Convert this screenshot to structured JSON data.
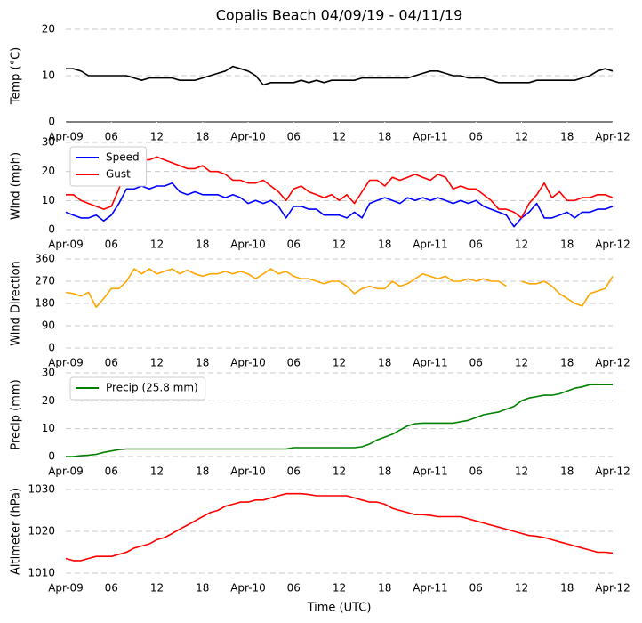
{
  "chart_data": [
    {
      "type": "line",
      "title": "Copalis Beach 04/09/19 - 04/11/19",
      "ylabel": "Temp (°C)",
      "x": [
        0,
        1,
        2,
        3,
        4,
        5,
        6,
        7,
        8,
        9,
        10,
        11,
        12,
        13,
        14,
        15,
        16,
        17,
        18,
        19,
        20,
        21,
        22,
        23,
        24,
        25,
        26,
        27,
        28,
        29,
        30,
        31,
        32,
        33,
        34,
        35,
        36,
        37,
        38,
        39,
        40,
        41,
        42,
        43,
        44,
        45,
        46,
        47,
        48,
        49,
        50,
        51,
        52,
        53,
        54,
        55,
        56,
        57,
        58,
        59,
        60,
        61,
        62,
        63,
        64,
        65,
        66,
        67,
        68,
        69,
        70,
        71,
        72
      ],
      "series": [
        {
          "color": "#000000",
          "values": [
            11.5,
            11.5,
            11,
            10,
            10,
            10,
            10,
            10,
            10,
            9.5,
            9,
            9.5,
            9.5,
            9.5,
            9.5,
            9,
            9,
            9,
            9.5,
            10,
            10.5,
            11,
            12,
            11.5,
            11,
            10,
            8,
            8.5,
            8.5,
            8.5,
            8.5,
            9,
            8.5,
            9,
            8.5,
            9,
            9,
            9,
            9,
            9.5,
            9.5,
            9.5,
            9.5,
            9.5,
            9.5,
            9.5,
            10,
            10.5,
            11,
            11,
            10.5,
            10,
            10,
            9.5,
            9.5,
            9.5,
            9,
            8.5,
            8.5,
            8.5,
            8.5,
            8.5,
            9,
            9,
            9,
            9,
            9,
            9,
            9.5,
            10,
            11,
            11.5,
            11
          ]
        }
      ],
      "xlim": [
        0,
        72
      ],
      "ylim": [
        0,
        20
      ],
      "yticks": [
        0,
        10,
        20
      ],
      "xticks": [
        {
          "value": 0,
          "label": "Apr-09"
        },
        {
          "value": 6,
          "label": "06"
        },
        {
          "value": 12,
          "label": "12"
        },
        {
          "value": 18,
          "label": "18"
        },
        {
          "value": 24,
          "label": "Apr-10"
        },
        {
          "value": 30,
          "label": "06"
        },
        {
          "value": 36,
          "label": "12"
        },
        {
          "value": 42,
          "label": "18"
        },
        {
          "value": 48,
          "label": "Apr-11"
        },
        {
          "value": 54,
          "label": "06"
        },
        {
          "value": 60,
          "label": "12"
        },
        {
          "value": 66,
          "label": "18"
        },
        {
          "value": 72,
          "label": "Apr-12"
        }
      ],
      "grid": true
    },
    {
      "type": "line",
      "ylabel": "Wind (mph)",
      "x": [
        0,
        1,
        2,
        3,
        4,
        5,
        6,
        7,
        8,
        9,
        10,
        11,
        12,
        13,
        14,
        15,
        16,
        17,
        18,
        19,
        20,
        21,
        22,
        23,
        24,
        25,
        26,
        27,
        28,
        29,
        30,
        31,
        32,
        33,
        34,
        35,
        36,
        37,
        38,
        39,
        40,
        41,
        42,
        43,
        44,
        45,
        46,
        47,
        48,
        49,
        50,
        51,
        52,
        53,
        54,
        55,
        56,
        57,
        58,
        59,
        60,
        61,
        62,
        63,
        64,
        65,
        66,
        67,
        68,
        69,
        70,
        71,
        72
      ],
      "series": [
        {
          "name": "Speed",
          "color": "#0000ff",
          "values": [
            6,
            5,
            4,
            4,
            5,
            3,
            5,
            9,
            14,
            14,
            15,
            14,
            15,
            15,
            16,
            13,
            12,
            13,
            12,
            12,
            12,
            11,
            12,
            11,
            9,
            10,
            9,
            10,
            8,
            4,
            8,
            8,
            7,
            7,
            5,
            5,
            5,
            4,
            6,
            4,
            9,
            10,
            11,
            10,
            9,
            11,
            10,
            11,
            10,
            11,
            10,
            9,
            10,
            9,
            10,
            8,
            7,
            6,
            5,
            1,
            4,
            6,
            9,
            4,
            4,
            5,
            6,
            4,
            6,
            6,
            7,
            7,
            8
          ]
        },
        {
          "name": "Gust",
          "color": "#ff0000",
          "values": [
            12,
            12,
            10,
            9,
            8,
            7,
            8,
            14,
            22,
            23,
            24,
            24,
            25,
            24,
            23,
            22,
            21,
            21,
            22,
            20,
            20,
            19,
            17,
            17,
            16,
            16,
            17,
            15,
            13,
            10,
            14,
            15,
            13,
            12,
            11,
            12,
            10,
            12,
            9,
            13,
            17,
            17,
            15,
            18,
            17,
            18,
            19,
            18,
            17,
            19,
            18,
            14,
            15,
            14,
            14,
            12,
            10,
            7,
            7,
            6,
            4,
            9,
            12,
            16,
            11,
            13,
            10,
            10,
            11,
            11,
            12,
            12,
            11
          ]
        }
      ],
      "xlim": [
        0,
        72
      ],
      "ylim": [
        0,
        30
      ],
      "yticks": [
        0,
        10,
        20,
        30
      ],
      "xticks": [
        {
          "value": 0,
          "label": "Apr-09"
        },
        {
          "value": 6,
          "label": "06"
        },
        {
          "value": 12,
          "label": "12"
        },
        {
          "value": 18,
          "label": "18"
        },
        {
          "value": 24,
          "label": "Apr-10"
        },
        {
          "value": 30,
          "label": "06"
        },
        {
          "value": 36,
          "label": "12"
        },
        {
          "value": 42,
          "label": "18"
        },
        {
          "value": 48,
          "label": "Apr-11"
        },
        {
          "value": 54,
          "label": "06"
        },
        {
          "value": 60,
          "label": "12"
        },
        {
          "value": 66,
          "label": "18"
        },
        {
          "value": 72,
          "label": "Apr-12"
        }
      ],
      "grid": true,
      "legend": "upper left"
    },
    {
      "type": "line",
      "ylabel": "Wind Direction",
      "x": [
        0,
        1,
        2,
        3,
        4,
        5,
        6,
        7,
        8,
        9,
        10,
        11,
        12,
        13,
        14,
        15,
        16,
        17,
        18,
        19,
        20,
        21,
        22,
        23,
        24,
        25,
        26,
        27,
        28,
        29,
        30,
        31,
        32,
        33,
        34,
        35,
        36,
        37,
        38,
        39,
        40,
        41,
        42,
        43,
        44,
        45,
        46,
        47,
        48,
        49,
        50,
        51,
        52,
        53,
        54,
        55,
        56,
        57,
        58,
        59,
        60,
        61,
        62,
        63,
        64,
        65,
        66,
        67,
        68,
        69,
        70,
        71,
        72
      ],
      "series": [
        {
          "color": "#ffa500",
          "values": [
            225,
            220,
            210,
            225,
            165,
            200,
            240,
            240,
            270,
            320,
            300,
            320,
            300,
            310,
            320,
            300,
            315,
            300,
            290,
            300,
            300,
            310,
            300,
            310,
            300,
            280,
            300,
            320,
            300,
            310,
            290,
            280,
            280,
            270,
            260,
            270,
            270,
            250,
            220,
            240,
            250,
            240,
            240,
            270,
            250,
            260,
            280,
            300,
            290,
            280,
            290,
            270,
            270,
            280,
            270,
            280,
            270,
            270,
            250,
            null,
            270,
            260,
            260,
            270,
            250,
            220,
            200,
            180,
            170,
            220,
            230,
            240,
            290
          ]
        }
      ],
      "xlim": [
        0,
        72
      ],
      "ylim": [
        0,
        360
      ],
      "yticks": [
        0,
        90,
        180,
        270,
        360
      ],
      "xticks": [
        {
          "value": 0,
          "label": "Apr-09"
        },
        {
          "value": 6,
          "label": "06"
        },
        {
          "value": 12,
          "label": "12"
        },
        {
          "value": 18,
          "label": "18"
        },
        {
          "value": 24,
          "label": "Apr-10"
        },
        {
          "value": 30,
          "label": "06"
        },
        {
          "value": 36,
          "label": "12"
        },
        {
          "value": 42,
          "label": "18"
        },
        {
          "value": 48,
          "label": "Apr-11"
        },
        {
          "value": 54,
          "label": "06"
        },
        {
          "value": 60,
          "label": "12"
        },
        {
          "value": 66,
          "label": "18"
        },
        {
          "value": 72,
          "label": "Apr-12"
        }
      ],
      "grid": true
    },
    {
      "type": "line",
      "ylabel": "Precip (mm)",
      "x": [
        0,
        1,
        2,
        3,
        4,
        5,
        6,
        7,
        8,
        9,
        10,
        11,
        12,
        13,
        14,
        15,
        16,
        17,
        18,
        19,
        20,
        21,
        22,
        23,
        24,
        25,
        26,
        27,
        28,
        29,
        30,
        31,
        32,
        33,
        34,
        35,
        36,
        37,
        38,
        39,
        40,
        41,
        42,
        43,
        44,
        45,
        46,
        47,
        48,
        49,
        50,
        51,
        52,
        53,
        54,
        55,
        56,
        57,
        58,
        59,
        60,
        61,
        62,
        63,
        64,
        65,
        66,
        67,
        68,
        69,
        70,
        71,
        72
      ],
      "series": [
        {
          "name": "Precip (25.8 mm)",
          "color": "#008000",
          "values": [
            0,
            0,
            0.3,
            0.5,
            0.8,
            1.5,
            2,
            2.5,
            2.7,
            2.7,
            2.7,
            2.7,
            2.7,
            2.7,
            2.7,
            2.7,
            2.7,
            2.7,
            2.7,
            2.7,
            2.7,
            2.7,
            2.7,
            2.7,
            2.7,
            2.7,
            2.7,
            2.7,
            2.7,
            2.7,
            3.2,
            3.2,
            3.2,
            3.2,
            3.2,
            3.2,
            3.2,
            3.2,
            3.2,
            3.5,
            4.5,
            6,
            7,
            8,
            9.5,
            11,
            11.8,
            12,
            12,
            12,
            12,
            12,
            12.5,
            13,
            14,
            15,
            15.5,
            16,
            17,
            18,
            20,
            21,
            21.5,
            22,
            22,
            22.5,
            23.5,
            24.5,
            25,
            25.8,
            25.8,
            25.8,
            25.8
          ]
        }
      ],
      "xlim": [
        0,
        72
      ],
      "ylim": [
        0,
        30
      ],
      "yticks": [
        0,
        10,
        20,
        30
      ],
      "xticks": [
        {
          "value": 0,
          "label": "Apr-09"
        },
        {
          "value": 6,
          "label": "06"
        },
        {
          "value": 12,
          "label": "12"
        },
        {
          "value": 18,
          "label": "18"
        },
        {
          "value": 24,
          "label": "Apr-10"
        },
        {
          "value": 30,
          "label": "06"
        },
        {
          "value": 36,
          "label": "12"
        },
        {
          "value": 42,
          "label": "18"
        },
        {
          "value": 48,
          "label": "Apr-11"
        },
        {
          "value": 54,
          "label": "06"
        },
        {
          "value": 60,
          "label": "12"
        },
        {
          "value": 66,
          "label": "18"
        },
        {
          "value": 72,
          "label": "Apr-12"
        }
      ],
      "grid": true,
      "legend": "upper left"
    },
    {
      "type": "line",
      "ylabel": "Altimeter (hPa)",
      "xlabel": "Time (UTC)",
      "x": [
        0,
        1,
        2,
        3,
        4,
        5,
        6,
        7,
        8,
        9,
        10,
        11,
        12,
        13,
        14,
        15,
        16,
        17,
        18,
        19,
        20,
        21,
        22,
        23,
        24,
        25,
        26,
        27,
        28,
        29,
        30,
        31,
        32,
        33,
        34,
        35,
        36,
        37,
        38,
        39,
        40,
        41,
        42,
        43,
        44,
        45,
        46,
        47,
        48,
        49,
        50,
        51,
        52,
        53,
        54,
        55,
        56,
        57,
        58,
        59,
        60,
        61,
        62,
        63,
        64,
        65,
        66,
        67,
        68,
        69,
        70,
        71,
        72
      ],
      "series": [
        {
          "color": "#ff0000",
          "values": [
            1013.5,
            1013,
            1013,
            1013.5,
            1014,
            1014,
            1014,
            1014.5,
            1015,
            1016,
            1016.5,
            1017,
            1018,
            1018.5,
            1019.5,
            1020.5,
            1021.5,
            1022.5,
            1023.5,
            1024.5,
            1025,
            1026,
            1026.5,
            1027,
            1027,
            1027.5,
            1027.5,
            1028,
            1028.5,
            1029,
            1029,
            1029,
            1028.8,
            1028.5,
            1028.5,
            1028.5,
            1028.5,
            1028.5,
            1028,
            1027.5,
            1027,
            1027,
            1026.5,
            1025.5,
            1025,
            1024.5,
            1024,
            1024,
            1023.8,
            1023.5,
            1023.5,
            1023.5,
            1023.5,
            1023,
            1022.5,
            1022,
            1021.5,
            1021,
            1020.5,
            1020,
            1019.5,
            1019,
            1018.8,
            1018.5,
            1018,
            1017.5,
            1017,
            1016.5,
            1016,
            1015.5,
            1015,
            1015,
            1014.8
          ]
        }
      ],
      "xlim": [
        0,
        72
      ],
      "ylim": [
        1010,
        1030
      ],
      "yticks": [
        1010,
        1020,
        1030
      ],
      "xticks": [
        {
          "value": 0,
          "label": "Apr-09"
        },
        {
          "value": 6,
          "label": "06"
        },
        {
          "value": 12,
          "label": "12"
        },
        {
          "value": 18,
          "label": "18"
        },
        {
          "value": 24,
          "label": "Apr-10"
        },
        {
          "value": 30,
          "label": "06"
        },
        {
          "value": 36,
          "label": "12"
        },
        {
          "value": 42,
          "label": "18"
        },
        {
          "value": 48,
          "label": "Apr-11"
        },
        {
          "value": 54,
          "label": "06"
        },
        {
          "value": 60,
          "label": "12"
        },
        {
          "value": 66,
          "label": "18"
        },
        {
          "value": 72,
          "label": "Apr-12"
        }
      ],
      "grid": true
    }
  ]
}
